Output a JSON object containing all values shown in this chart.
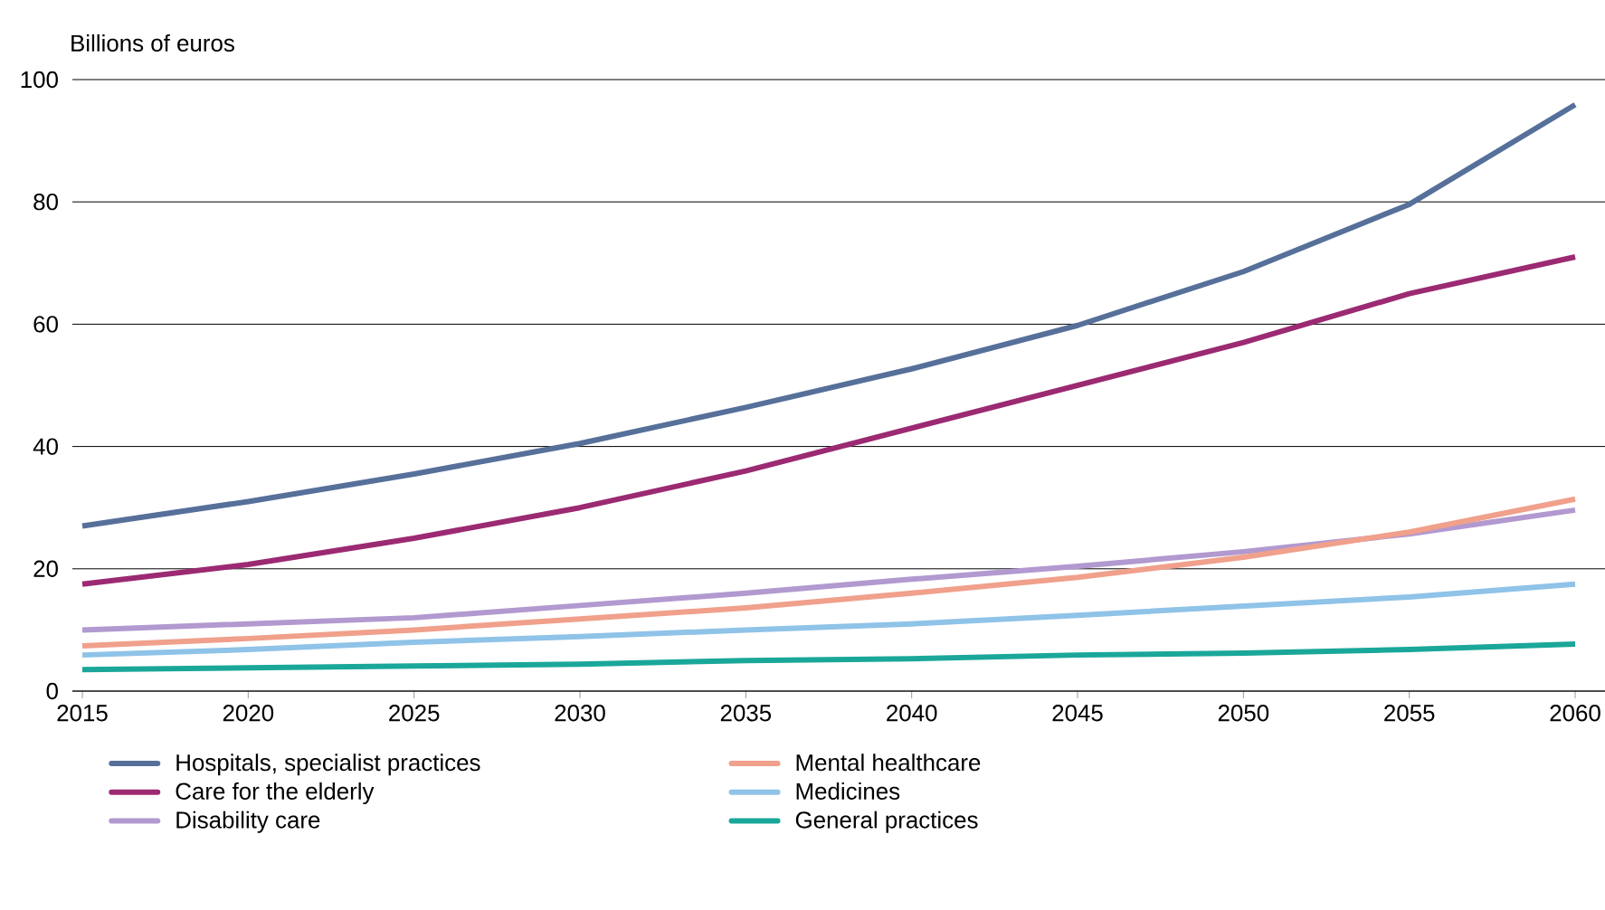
{
  "chart_data": {
    "type": "line",
    "ylabel": "Billions of euros",
    "x": [
      2015,
      2020,
      2025,
      2030,
      2035,
      2040,
      2045,
      2050,
      2055,
      2060
    ],
    "xlim": [
      2014.7,
      2060.9
    ],
    "xticks": [
      2015,
      2020,
      2025,
      2030,
      2035,
      2040,
      2045,
      2050,
      2055,
      2060
    ],
    "ylim": [
      0,
      100
    ],
    "yticks": [
      0,
      20,
      40,
      60,
      80,
      100
    ],
    "grid": "y",
    "legend": "bottom",
    "line_style": "solid",
    "marker": "none",
    "series": [
      {
        "name": "Hospitals, specialist practices",
        "color": "#56709a",
        "values": [
          27,
          31,
          35.5,
          40.5,
          46.4,
          52.7,
          59.8,
          68.6,
          79.6,
          95.9
        ]
      },
      {
        "name": "Care for the elderly",
        "color": "#9b2a72",
        "values": [
          17.5,
          20.7,
          25,
          30,
          36,
          43,
          50,
          57,
          65,
          71
        ]
      },
      {
        "name": "Disability care",
        "color": "#b299cf",
        "values": [
          10,
          11,
          12,
          14,
          16,
          18.3,
          20.4,
          22.8,
          25.7,
          29.6
        ]
      },
      {
        "name": "Mental healthcare",
        "color": "#f0a08b",
        "values": [
          7.4,
          8.6,
          10,
          11.8,
          13.6,
          16,
          18.6,
          21.9,
          26,
          31.4
        ]
      },
      {
        "name": "Medicines",
        "color": "#8fc3e8",
        "values": [
          5.9,
          6.8,
          8,
          8.9,
          10,
          11,
          12.4,
          13.9,
          15.4,
          17.5
        ]
      },
      {
        "name": "General practices",
        "color": "#1aa79a",
        "values": [
          3.5,
          3.8,
          4.1,
          4.4,
          5,
          5.3,
          5.9,
          6.2,
          6.8,
          7.7
        ]
      }
    ]
  }
}
